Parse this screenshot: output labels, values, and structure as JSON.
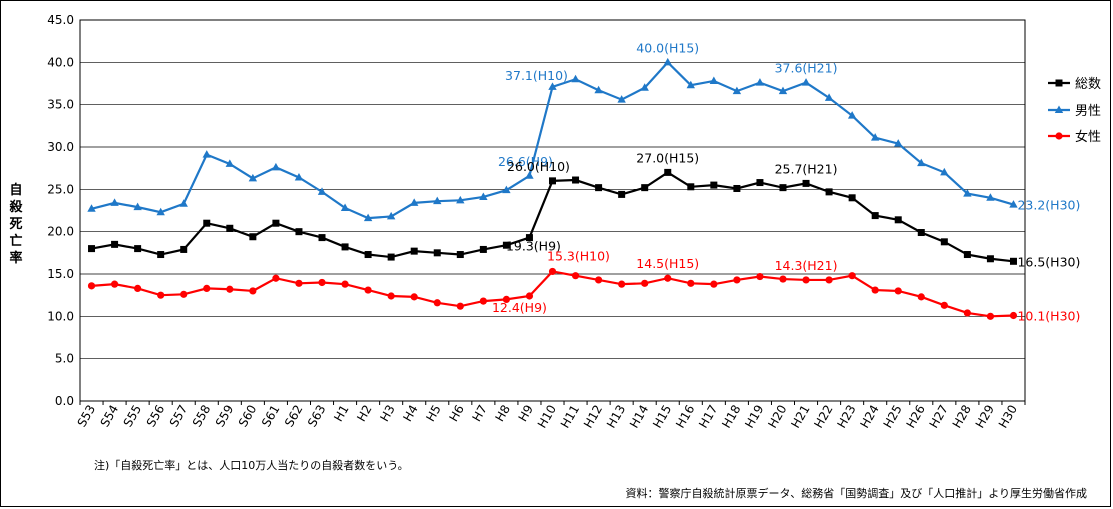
{
  "chart_data": {
    "type": "line",
    "ylabel": "自殺死亡率",
    "ylim": [
      0,
      45
    ],
    "yticks": [
      "0.0",
      "5.0",
      "10.0",
      "15.0",
      "20.0",
      "25.0",
      "30.0",
      "35.0",
      "40.0",
      "45.0"
    ],
    "categories": [
      "S53",
      "S54",
      "S55",
      "S56",
      "S57",
      "S58",
      "S59",
      "S60",
      "S61",
      "S62",
      "S63",
      "H1",
      "H2",
      "H3",
      "H4",
      "H5",
      "H6",
      "H7",
      "H8",
      "H9",
      "H10",
      "H11",
      "H12",
      "H13",
      "H14",
      "H15",
      "H16",
      "H17",
      "H18",
      "H19",
      "H20",
      "H21",
      "H22",
      "H23",
      "H24",
      "H25",
      "H26",
      "H27",
      "H28",
      "H29",
      "H30"
    ],
    "series": [
      {
        "name": "総数",
        "color": "#000000",
        "marker": "square",
        "values": [
          18.0,
          18.5,
          18.0,
          17.3,
          17.9,
          21.0,
          20.4,
          19.4,
          21.0,
          20.0,
          19.3,
          18.2,
          17.3,
          17.0,
          17.7,
          17.5,
          17.3,
          17.9,
          18.4,
          19.3,
          26.0,
          26.1,
          25.2,
          24.4,
          25.2,
          27.0,
          25.3,
          25.5,
          25.1,
          25.8,
          25.2,
          25.7,
          24.7,
          24.0,
          21.9,
          21.4,
          19.9,
          18.8,
          17.3,
          16.8,
          16.5
        ]
      },
      {
        "name": "男性",
        "color": "#1F78C8",
        "marker": "triangle",
        "values": [
          22.7,
          23.4,
          22.9,
          22.3,
          23.3,
          29.1,
          28.0,
          26.3,
          27.6,
          26.4,
          24.7,
          22.8,
          21.6,
          21.8,
          23.4,
          23.6,
          23.7,
          24.1,
          24.9,
          26.6,
          37.1,
          38.0,
          36.7,
          35.6,
          37.0,
          40.0,
          37.3,
          37.8,
          36.6,
          37.6,
          36.6,
          37.6,
          35.8,
          33.7,
          31.1,
          30.4,
          28.1,
          27.0,
          24.5,
          24.0,
          23.2
        ]
      },
      {
        "name": "女性",
        "color": "#FF0000",
        "marker": "circle",
        "values": [
          13.6,
          13.8,
          13.3,
          12.5,
          12.6,
          13.3,
          13.2,
          13.0,
          14.5,
          13.9,
          14.0,
          13.8,
          13.1,
          12.4,
          12.3,
          11.6,
          11.2,
          11.8,
          12.0,
          12.4,
          15.3,
          14.8,
          14.3,
          13.8,
          13.9,
          14.5,
          13.9,
          13.8,
          14.3,
          14.7,
          14.4,
          14.3,
          14.3,
          14.8,
          13.1,
          13.0,
          12.3,
          11.3,
          10.4,
          10.0,
          10.1
        ]
      }
    ],
    "annotations": [
      {
        "text": "37.1(H10)",
        "series": 1,
        "index": 20
      },
      {
        "text": "40.0(H15)",
        "series": 1,
        "index": 25
      },
      {
        "text": "37.6(H21)",
        "series": 1,
        "index": 31
      },
      {
        "text": "26.6(H9)",
        "series": 1,
        "index": 19
      },
      {
        "text": "23.2(H30)",
        "series": 1,
        "index": 40
      },
      {
        "text": "26.0(H10)",
        "series": 0,
        "index": 20
      },
      {
        "text": "27.0(H15)",
        "series": 0,
        "index": 25
      },
      {
        "text": "25.7(H21)",
        "series": 0,
        "index": 31
      },
      {
        "text": "19.3(H9)",
        "series": 0,
        "index": 19
      },
      {
        "text": "16.5(H30)",
        "series": 0,
        "index": 40
      },
      {
        "text": "15.3(H10)",
        "series": 2,
        "index": 20
      },
      {
        "text": "14.5(H15)",
        "series": 2,
        "index": 25
      },
      {
        "text": "14.3(H21)",
        "series": 2,
        "index": 31
      },
      {
        "text": "12.4(H9)",
        "series": 2,
        "index": 19
      },
      {
        "text": "10.1(H30)",
        "series": 2,
        "index": 40
      }
    ]
  },
  "footnote": "注)「自殺死亡率」とは、人口10万人当たりの自殺者数をいう。",
  "source": "資料：警察庁自殺統計原票データ、総務省「国勢調査」及び「人口推計」より厚生労働省作成"
}
